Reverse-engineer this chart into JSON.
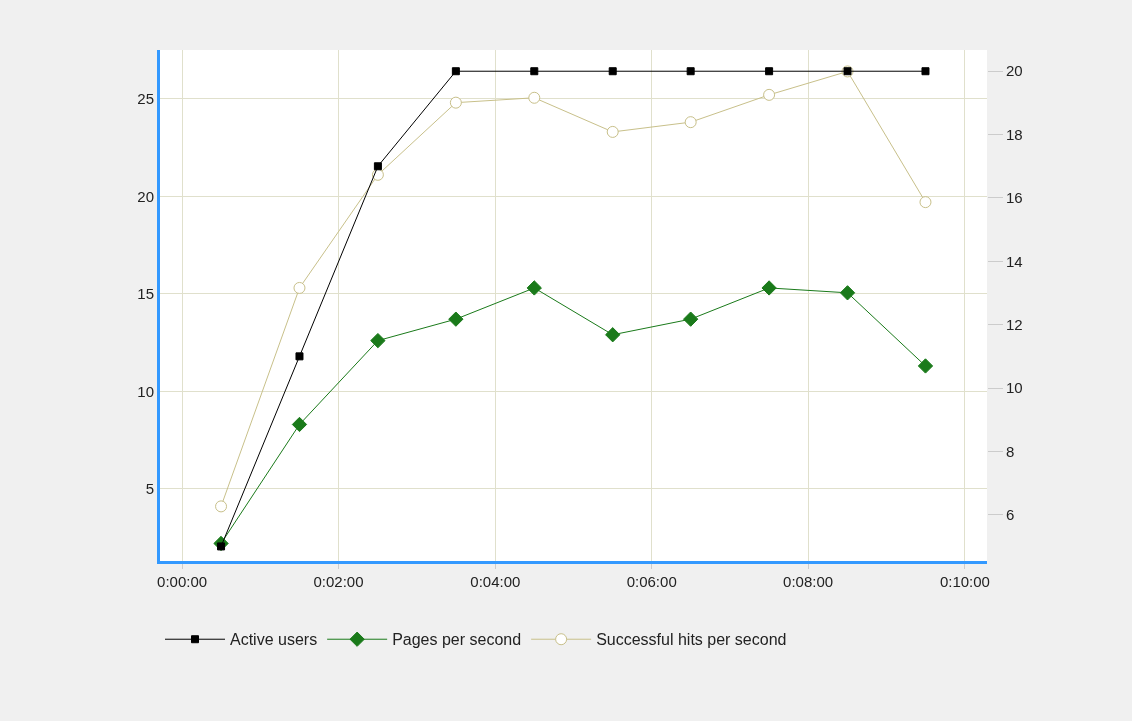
{
  "chart_data": {
    "type": "line",
    "x": [
      0.0083,
      0.025,
      0.0417,
      0.0583,
      0.075,
      0.0917,
      0.1083,
      0.125,
      0.1417,
      0.1583
    ],
    "xlim": [
      -0.0047,
      0.1714
    ],
    "xticks": [
      {
        "value": 0,
        "label": "0:00:00"
      },
      {
        "value": 0.0333,
        "label": "0:02:00"
      },
      {
        "value": 0.0667,
        "label": "0:04:00"
      },
      {
        "value": 0.1,
        "label": "0:06:00"
      },
      {
        "value": 0.1333,
        "label": "0:08:00"
      },
      {
        "value": 0.1667,
        "label": "0:10:00"
      }
    ],
    "ylim": [
      1.3,
      27.5
    ],
    "yticks": [
      5,
      10,
      15,
      20,
      25
    ],
    "y2lim": [
      4.54,
      20.67
    ],
    "y2ticks": [
      6,
      8,
      10,
      12,
      14,
      16,
      18,
      20
    ],
    "series": [
      {
        "name": "Active users",
        "color": "#000000",
        "axis": "y2",
        "marker": "square",
        "values": [
          5,
          11,
          17,
          20,
          20,
          20,
          20,
          20,
          20,
          20
        ]
      },
      {
        "name": "Pages per second",
        "color": "#1a7a1a",
        "marker": "diamond",
        "values": [
          2.2,
          8.3,
          12.6,
          13.7,
          15.3,
          12.9,
          13.7,
          15.3,
          15.05,
          11.3
        ]
      },
      {
        "name": "Successful hits per second",
        "color": "#c8c08a",
        "marker": "circle-open",
        "values": [
          4.1,
          15.3,
          21.1,
          24.8,
          25.05,
          23.3,
          23.8,
          25.2,
          26.4,
          19.7
        ]
      }
    ],
    "grid": true,
    "legend": "bottom"
  }
}
